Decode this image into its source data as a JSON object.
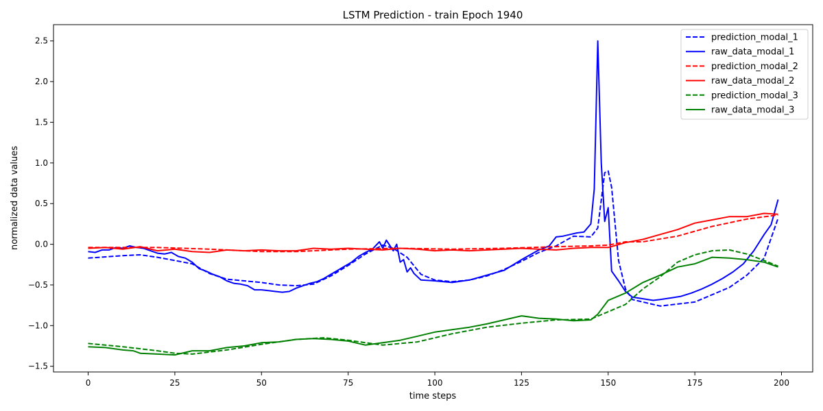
{
  "chart_data": {
    "type": "line",
    "title": "LSTM Prediction - train Epoch 1940",
    "xlabel": "time steps",
    "ylabel": "normalized data values",
    "xlim": [
      -10,
      209
    ],
    "ylim": [
      -1.57,
      2.7
    ],
    "xticks": [
      0,
      25,
      50,
      75,
      100,
      125,
      150,
      175,
      200
    ],
    "yticks": [
      -1.5,
      -1.0,
      -0.5,
      0.0,
      0.5,
      1.0,
      1.5,
      2.0,
      2.5
    ],
    "xtick_labels": [
      "0",
      "25",
      "50",
      "75",
      "100",
      "125",
      "150",
      "175",
      "200"
    ],
    "ytick_labels": [
      "−1.5",
      "−1.0",
      "−0.5",
      "0.0",
      "0.5",
      "1.0",
      "1.5",
      "2.0",
      "2.5"
    ],
    "grid": false,
    "legend_position": "top-right",
    "series": [
      {
        "name": "prediction_modal_1",
        "color": "#0000ff",
        "dash": "dashed",
        "points": [
          [
            0,
            -0.17
          ],
          [
            10,
            -0.14
          ],
          [
            15,
            -0.13
          ],
          [
            20,
            -0.16
          ],
          [
            25,
            -0.2
          ],
          [
            30,
            -0.24
          ],
          [
            35,
            -0.36
          ],
          [
            40,
            -0.43
          ],
          [
            50,
            -0.47
          ],
          [
            55,
            -0.5
          ],
          [
            60,
            -0.51
          ],
          [
            65,
            -0.49
          ],
          [
            70,
            -0.39
          ],
          [
            75,
            -0.26
          ],
          [
            80,
            -0.12
          ],
          [
            85,
            -0.01
          ],
          [
            88,
            -0.05
          ],
          [
            92,
            -0.16
          ],
          [
            96,
            -0.37
          ],
          [
            100,
            -0.44
          ],
          [
            105,
            -0.46
          ],
          [
            110,
            -0.44
          ],
          [
            115,
            -0.39
          ],
          [
            120,
            -0.31
          ],
          [
            125,
            -0.21
          ],
          [
            130,
            -0.1
          ],
          [
            135,
            -0.02
          ],
          [
            140,
            0.1
          ],
          [
            145,
            0.09
          ],
          [
            147,
            0.2
          ],
          [
            149,
            0.88
          ],
          [
            150,
            0.9
          ],
          [
            151,
            0.7
          ],
          [
            153,
            -0.2
          ],
          [
            155,
            -0.55
          ],
          [
            157,
            -0.68
          ],
          [
            165,
            -0.76
          ],
          [
            175,
            -0.71
          ],
          [
            185,
            -0.53
          ],
          [
            190,
            -0.38
          ],
          [
            195,
            -0.17
          ],
          [
            199,
            0.32
          ]
        ]
      },
      {
        "name": "raw_data_modal_1",
        "color": "#0000ff",
        "dash": "solid",
        "points": [
          [
            0,
            -0.09
          ],
          [
            2,
            -0.1
          ],
          [
            4,
            -0.07
          ],
          [
            6,
            -0.07
          ],
          [
            8,
            -0.04
          ],
          [
            10,
            -0.05
          ],
          [
            12,
            -0.02
          ],
          [
            14,
            -0.04
          ],
          [
            16,
            -0.05
          ],
          [
            18,
            -0.08
          ],
          [
            20,
            -0.11
          ],
          [
            22,
            -0.12
          ],
          [
            24,
            -0.1
          ],
          [
            26,
            -0.15
          ],
          [
            28,
            -0.17
          ],
          [
            30,
            -0.22
          ],
          [
            32,
            -0.3
          ],
          [
            34,
            -0.33
          ],
          [
            36,
            -0.37
          ],
          [
            38,
            -0.4
          ],
          [
            40,
            -0.45
          ],
          [
            42,
            -0.48
          ],
          [
            44,
            -0.49
          ],
          [
            46,
            -0.51
          ],
          [
            48,
            -0.56
          ],
          [
            50,
            -0.56
          ],
          [
            52,
            -0.57
          ],
          [
            54,
            -0.58
          ],
          [
            56,
            -0.59
          ],
          [
            58,
            -0.58
          ],
          [
            60,
            -0.54
          ],
          [
            62,
            -0.51
          ],
          [
            64,
            -0.48
          ],
          [
            66,
            -0.46
          ],
          [
            68,
            -0.42
          ],
          [
            70,
            -0.37
          ],
          [
            72,
            -0.32
          ],
          [
            74,
            -0.27
          ],
          [
            76,
            -0.22
          ],
          [
            78,
            -0.15
          ],
          [
            80,
            -0.1
          ],
          [
            82,
            -0.06
          ],
          [
            84,
            0.03
          ],
          [
            85,
            -0.05
          ],
          [
            86,
            0.05
          ],
          [
            88,
            -0.08
          ],
          [
            89,
            0.0
          ],
          [
            90,
            -0.22
          ],
          [
            91,
            -0.19
          ],
          [
            92,
            -0.34
          ],
          [
            93,
            -0.29
          ],
          [
            94,
            -0.36
          ],
          [
            96,
            -0.44
          ],
          [
            100,
            -0.45
          ],
          [
            105,
            -0.47
          ],
          [
            110,
            -0.44
          ],
          [
            115,
            -0.38
          ],
          [
            120,
            -0.32
          ],
          [
            125,
            -0.19
          ],
          [
            130,
            -0.07
          ],
          [
            133,
            -0.02
          ],
          [
            135,
            0.09
          ],
          [
            137,
            0.1
          ],
          [
            139,
            0.12
          ],
          [
            141,
            0.14
          ],
          [
            143,
            0.15
          ],
          [
            145,
            0.25
          ],
          [
            146,
            0.68
          ],
          [
            147,
            2.5
          ],
          [
            148,
            1.0
          ],
          [
            149,
            0.28
          ],
          [
            150,
            0.45
          ],
          [
            151,
            -0.33
          ],
          [
            153,
            -0.45
          ],
          [
            155,
            -0.58
          ],
          [
            157,
            -0.65
          ],
          [
            160,
            -0.67
          ],
          [
            163,
            -0.69
          ],
          [
            165,
            -0.68
          ],
          [
            168,
            -0.66
          ],
          [
            171,
            -0.64
          ],
          [
            174,
            -0.6
          ],
          [
            177,
            -0.55
          ],
          [
            180,
            -0.49
          ],
          [
            183,
            -0.42
          ],
          [
            186,
            -0.34
          ],
          [
            189,
            -0.24
          ],
          [
            192,
            -0.08
          ],
          [
            195,
            0.12
          ],
          [
            197,
            0.24
          ],
          [
            199,
            0.55
          ]
        ]
      },
      {
        "name": "prediction_modal_2",
        "color": "#ff0000",
        "dash": "dashed",
        "points": [
          [
            0,
            -0.04
          ],
          [
            20,
            -0.04
          ],
          [
            35,
            -0.06
          ],
          [
            50,
            -0.09
          ],
          [
            60,
            -0.09
          ],
          [
            75,
            -0.06
          ],
          [
            90,
            -0.05
          ],
          [
            105,
            -0.06
          ],
          [
            120,
            -0.05
          ],
          [
            135,
            -0.03
          ],
          [
            145,
            -0.02
          ],
          [
            150,
            -0.01
          ],
          [
            155,
            0.03
          ],
          [
            160,
            0.03
          ],
          [
            170,
            0.1
          ],
          [
            180,
            0.22
          ],
          [
            190,
            0.31
          ],
          [
            199,
            0.36
          ]
        ]
      },
      {
        "name": "raw_data_modal_2",
        "color": "#ff0000",
        "dash": "solid",
        "points": [
          [
            0,
            -0.05
          ],
          [
            5,
            -0.04
          ],
          [
            10,
            -0.06
          ],
          [
            15,
            -0.03
          ],
          [
            20,
            -0.08
          ],
          [
            25,
            -0.06
          ],
          [
            30,
            -0.09
          ],
          [
            35,
            -0.1
          ],
          [
            40,
            -0.07
          ],
          [
            45,
            -0.08
          ],
          [
            50,
            -0.07
          ],
          [
            55,
            -0.08
          ],
          [
            60,
            -0.08
          ],
          [
            65,
            -0.05
          ],
          [
            70,
            -0.06
          ],
          [
            75,
            -0.05
          ],
          [
            80,
            -0.06
          ],
          [
            85,
            -0.07
          ],
          [
            90,
            -0.05
          ],
          [
            95,
            -0.06
          ],
          [
            100,
            -0.08
          ],
          [
            105,
            -0.07
          ],
          [
            110,
            -0.08
          ],
          [
            115,
            -0.07
          ],
          [
            120,
            -0.06
          ],
          [
            125,
            -0.05
          ],
          [
            130,
            -0.06
          ],
          [
            135,
            -0.07
          ],
          [
            140,
            -0.05
          ],
          [
            145,
            -0.04
          ],
          [
            150,
            -0.04
          ],
          [
            155,
            0.02
          ],
          [
            160,
            0.06
          ],
          [
            165,
            0.12
          ],
          [
            170,
            0.18
          ],
          [
            175,
            0.26
          ],
          [
            180,
            0.3
          ],
          [
            185,
            0.34
          ],
          [
            190,
            0.34
          ],
          [
            195,
            0.38
          ],
          [
            199,
            0.37
          ]
        ]
      },
      {
        "name": "prediction_modal_3",
        "color": "#008000",
        "dash": "dashed",
        "points": [
          [
            0,
            -1.22
          ],
          [
            10,
            -1.26
          ],
          [
            20,
            -1.31
          ],
          [
            25,
            -1.34
          ],
          [
            30,
            -1.35
          ],
          [
            40,
            -1.3
          ],
          [
            50,
            -1.23
          ],
          [
            60,
            -1.17
          ],
          [
            68,
            -1.15
          ],
          [
            75,
            -1.18
          ],
          [
            85,
            -1.24
          ],
          [
            95,
            -1.2
          ],
          [
            105,
            -1.1
          ],
          [
            115,
            -1.02
          ],
          [
            125,
            -0.97
          ],
          [
            135,
            -0.93
          ],
          [
            145,
            -0.92
          ],
          [
            150,
            -0.83
          ],
          [
            155,
            -0.74
          ],
          [
            160,
            -0.55
          ],
          [
            165,
            -0.4
          ],
          [
            170,
            -0.22
          ],
          [
            175,
            -0.13
          ],
          [
            180,
            -0.08
          ],
          [
            185,
            -0.07
          ],
          [
            190,
            -0.12
          ],
          [
            195,
            -0.2
          ],
          [
            199,
            -0.27
          ]
        ]
      },
      {
        "name": "raw_data_modal_3",
        "color": "#008000",
        "dash": "solid",
        "points": [
          [
            0,
            -1.26
          ],
          [
            5,
            -1.27
          ],
          [
            10,
            -1.3
          ],
          [
            13,
            -1.31
          ],
          [
            15,
            -1.34
          ],
          [
            20,
            -1.35
          ],
          [
            25,
            -1.36
          ],
          [
            30,
            -1.31
          ],
          [
            35,
            -1.31
          ],
          [
            40,
            -1.27
          ],
          [
            45,
            -1.25
          ],
          [
            50,
            -1.21
          ],
          [
            55,
            -1.2
          ],
          [
            60,
            -1.17
          ],
          [
            65,
            -1.16
          ],
          [
            70,
            -1.17
          ],
          [
            75,
            -1.19
          ],
          [
            80,
            -1.24
          ],
          [
            85,
            -1.21
          ],
          [
            90,
            -1.18
          ],
          [
            95,
            -1.13
          ],
          [
            100,
            -1.08
          ],
          [
            105,
            -1.05
          ],
          [
            110,
            -1.02
          ],
          [
            115,
            -0.98
          ],
          [
            120,
            -0.93
          ],
          [
            125,
            -0.88
          ],
          [
            130,
            -0.91
          ],
          [
            135,
            -0.92
          ],
          [
            140,
            -0.94
          ],
          [
            145,
            -0.93
          ],
          [
            147,
            -0.86
          ],
          [
            150,
            -0.69
          ],
          [
            155,
            -0.6
          ],
          [
            160,
            -0.47
          ],
          [
            165,
            -0.38
          ],
          [
            170,
            -0.28
          ],
          [
            175,
            -0.24
          ],
          [
            180,
            -0.16
          ],
          [
            185,
            -0.17
          ],
          [
            190,
            -0.19
          ],
          [
            195,
            -0.22
          ],
          [
            199,
            -0.28
          ]
        ]
      }
    ]
  }
}
